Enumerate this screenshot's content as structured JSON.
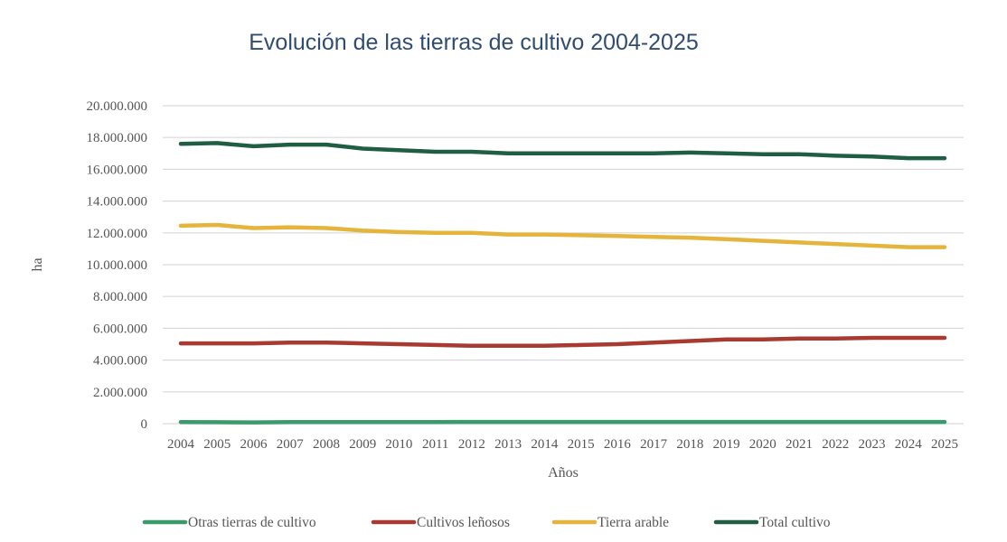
{
  "chart_data": {
    "type": "line",
    "title": "Evolución de las tierras de cultivo 2004-2025",
    "xlabel": "Años",
    "ylabel": "ha",
    "ylim": [
      0,
      20000000
    ],
    "y_ticks": [
      0,
      2000000,
      4000000,
      6000000,
      8000000,
      10000000,
      12000000,
      14000000,
      16000000,
      18000000,
      20000000
    ],
    "y_tick_labels": [
      "0",
      "2.000.000",
      "4.000.000",
      "6.000.000",
      "8.000.000",
      "10.000.000",
      "12.000.000",
      "14.000.000",
      "16.000.000",
      "18.000.000",
      "20.000.000"
    ],
    "grid": true,
    "legend_position": "bottom",
    "categories": [
      "2004",
      "2005",
      "2006",
      "2007",
      "2008",
      "2009",
      "2010",
      "2011",
      "2012",
      "2013",
      "2014",
      "2015",
      "2016",
      "2017",
      "2018",
      "2019",
      "2020",
      "2021",
      "2022",
      "2023",
      "2024",
      "2025"
    ],
    "series": [
      {
        "name": "Otras tierras de cultivo",
        "color": "#3a9a6a",
        "values": [
          100000,
          90000,
          80000,
          100000,
          100000,
          100000,
          100000,
          100000,
          110000,
          110000,
          110000,
          110000,
          110000,
          110000,
          110000,
          110000,
          110000,
          110000,
          110000,
          110000,
          110000,
          110000
        ]
      },
      {
        "name": "Cultivos leñosos",
        "color": "#a83a32",
        "values": [
          5050000,
          5050000,
          5050000,
          5100000,
          5100000,
          5050000,
          5000000,
          4950000,
          4900000,
          4900000,
          4900000,
          4950000,
          5000000,
          5100000,
          5200000,
          5300000,
          5300000,
          5350000,
          5350000,
          5400000,
          5400000,
          5400000
        ]
      },
      {
        "name": "Tierra arable",
        "color": "#e5b43c",
        "values": [
          12450000,
          12500000,
          12300000,
          12350000,
          12300000,
          12150000,
          12050000,
          12000000,
          12000000,
          11900000,
          11900000,
          11850000,
          11800000,
          11750000,
          11700000,
          11600000,
          11500000,
          11400000,
          11300000,
          11200000,
          11100000,
          11100000
        ]
      },
      {
        "name": "Total cultivo",
        "color": "#1f5e42",
        "values": [
          17600000,
          17650000,
          17450000,
          17550000,
          17550000,
          17300000,
          17200000,
          17100000,
          17100000,
          17000000,
          17000000,
          17000000,
          17000000,
          17000000,
          17050000,
          17000000,
          16950000,
          16950000,
          16850000,
          16800000,
          16700000,
          16700000
        ]
      }
    ]
  }
}
